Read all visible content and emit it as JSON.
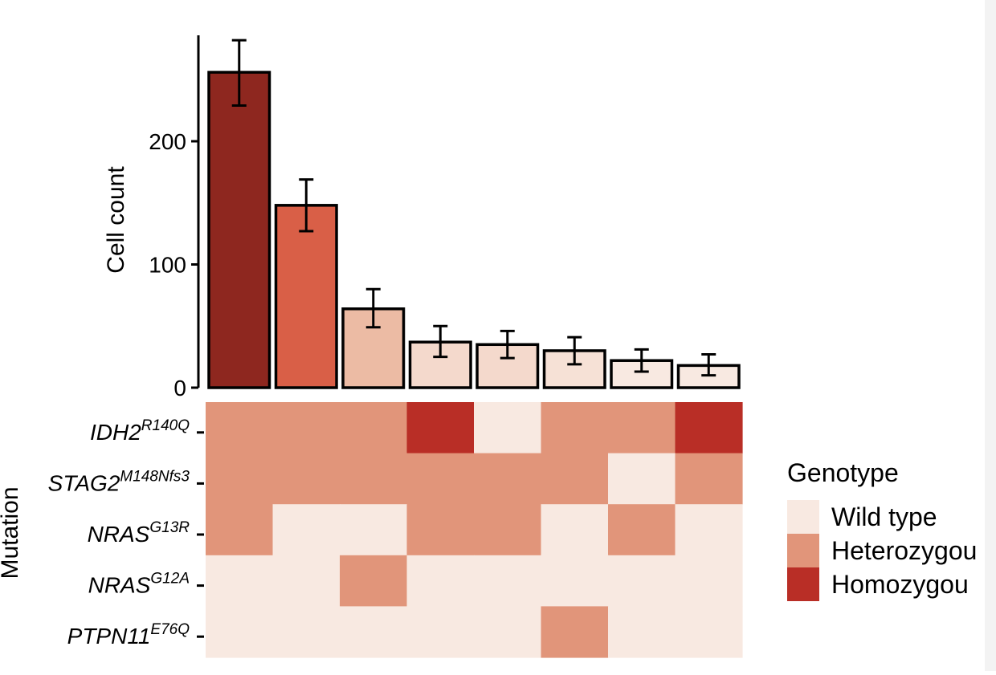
{
  "chart_data": {
    "type": "bar",
    "title": "",
    "ylabel": "Cell count",
    "ylim": [
      0,
      280
    ],
    "yticks": [
      0,
      100,
      200
    ],
    "grid": false,
    "bars": [
      {
        "value": 256,
        "err_low": 229,
        "err_high": 282,
        "color": "#8e271f"
      },
      {
        "value": 148,
        "err_low": 127,
        "err_high": 169,
        "color": "#d95f47"
      },
      {
        "value": 64,
        "err_low": 49,
        "err_high": 80,
        "color": "#ecbba4"
      },
      {
        "value": 37,
        "err_low": 25,
        "err_high": 50,
        "color": "#f4d9cc"
      },
      {
        "value": 35,
        "err_low": 24,
        "err_high": 46,
        "color": "#f4d9cc"
      },
      {
        "value": 30,
        "err_low": 19,
        "err_high": 41,
        "color": "#f6e1d6"
      },
      {
        "value": 22,
        "err_low": 13,
        "err_high": 31,
        "color": "#f8e9e1"
      },
      {
        "value": 18,
        "err_low": 10,
        "err_high": 27,
        "color": "#f8e9e1"
      }
    ],
    "heatmap": {
      "ylabel": "Mutation",
      "rows": [
        {
          "gene": "IDH2",
          "variant": "R140Q",
          "cells": [
            "het",
            "het",
            "het",
            "hom",
            "wt",
            "het",
            "het",
            "hom"
          ]
        },
        {
          "gene": "STAG2",
          "variant": "M148Nfs3",
          "cells": [
            "het",
            "het",
            "het",
            "het",
            "het",
            "het",
            "wt",
            "het"
          ]
        },
        {
          "gene": "NRAS",
          "variant": "G13R",
          "cells": [
            "het",
            "wt",
            "wt",
            "het",
            "het",
            "wt",
            "het",
            "wt"
          ]
        },
        {
          "gene": "NRAS",
          "variant": "G12A",
          "cells": [
            "wt",
            "wt",
            "het",
            "wt",
            "wt",
            "wt",
            "wt",
            "wt"
          ]
        },
        {
          "gene": "PTPN11",
          "variant": "E76Q",
          "cells": [
            "wt",
            "wt",
            "wt",
            "wt",
            "wt",
            "het",
            "wt",
            "wt"
          ]
        }
      ]
    },
    "legend": {
      "title": "Genotype",
      "placement": "right",
      "items": [
        {
          "key": "wt",
          "label": "Wild type",
          "color": "#f8e9e1"
        },
        {
          "key": "het",
          "label": "Heterozygou",
          "color": "#e1957a"
        },
        {
          "key": "hom",
          "label": "Homozygou",
          "color": "#b92e26"
        }
      ]
    }
  }
}
